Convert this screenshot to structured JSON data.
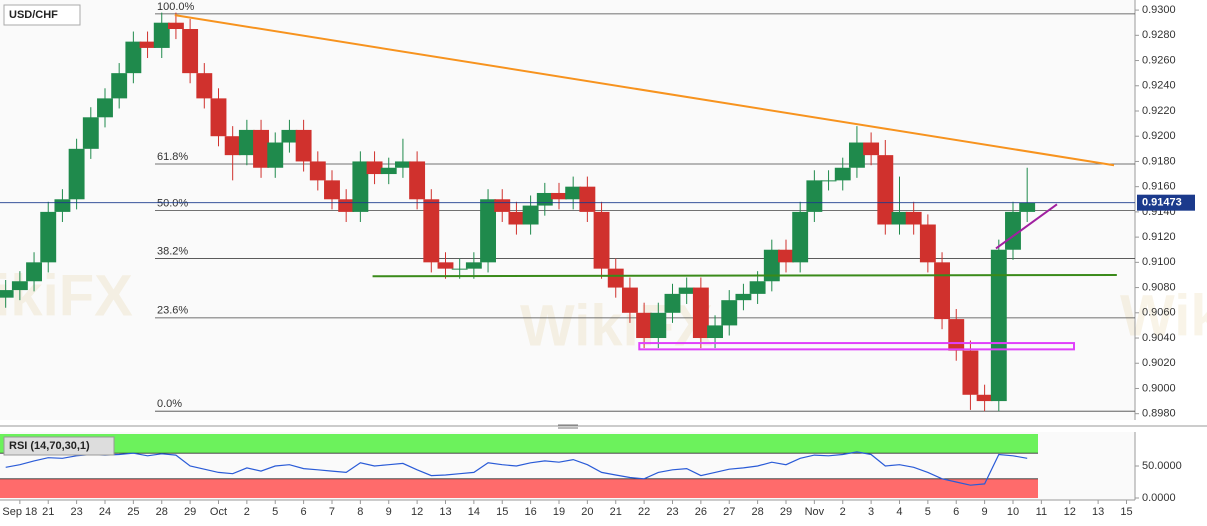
{
  "chart_data": [
    {
      "type": "candlestick",
      "title": "USD/CHF",
      "watermark": "WikiFX",
      "x_labels": [
        "Sep 18",
        "21",
        "23",
        "24",
        "25",
        "28",
        "29",
        "Oct",
        "2",
        "5",
        "6",
        "7",
        "8",
        "9",
        "12",
        "13",
        "14",
        "15",
        "16",
        "19",
        "20",
        "21",
        "22",
        "23",
        "26",
        "27",
        "28",
        "29",
        "Nov",
        "2",
        "3",
        "4",
        "5",
        "6",
        "9",
        "10",
        "11",
        "12",
        "13",
        "15"
      ],
      "xlim": [
        -0.7,
        39.3
      ],
      "ylim": [
        0.8975,
        0.9308
      ],
      "yticks": [
        {
          "value": 0.898,
          "label": "0.8980"
        },
        {
          "value": 0.9,
          "label": "0.9000"
        },
        {
          "value": 0.902,
          "label": "0.9020"
        },
        {
          "value": 0.904,
          "label": "0.9040"
        },
        {
          "value": 0.906,
          "label": "0.9060"
        },
        {
          "value": 0.908,
          "label": "0.9080"
        },
        {
          "value": 0.91,
          "label": "0.9100"
        },
        {
          "value": 0.912,
          "label": "0.9120"
        },
        {
          "value": 0.914,
          "label": "0.9140"
        },
        {
          "value": 0.916,
          "label": "0.9160"
        },
        {
          "value": 0.918,
          "label": "0.9180"
        },
        {
          "value": 0.92,
          "label": "0.9200"
        },
        {
          "value": 0.922,
          "label": "0.9220"
        },
        {
          "value": 0.924,
          "label": "0.9240"
        },
        {
          "value": 0.926,
          "label": "0.9260"
        },
        {
          "value": 0.928,
          "label": "0.9280"
        },
        {
          "value": 0.93,
          "label": "0.9300"
        }
      ],
      "up_color": "#1f8a4c",
      "down_color": "#d0312d",
      "candles": {
        "x": [
          -0.5,
          0,
          0.5,
          1,
          1.5,
          2,
          2.5,
          3,
          3.5,
          4,
          4.5,
          5,
          5.5,
          6,
          6.5,
          7,
          7.5,
          8,
          8.5,
          9,
          9.5,
          10,
          10.5,
          11,
          11.5,
          12,
          12.5,
          13,
          13.5,
          14,
          14.5,
          15,
          15.5,
          16,
          16.5,
          17,
          17.5,
          18,
          18.5,
          19,
          19.5,
          20,
          20.5,
          21,
          21.5,
          22,
          22.5,
          23,
          23.5,
          24,
          24.5,
          25,
          25.5,
          26,
          26.5,
          27,
          27.5,
          28,
          28.5,
          29,
          29.5,
          30,
          30.5,
          31,
          31.5,
          32,
          32.5,
          33,
          33.5,
          34,
          34.5,
          35,
          35.5
        ],
        "open": [
          0.9072,
          0.9078,
          0.9085,
          0.91,
          0.914,
          0.915,
          0.919,
          0.9215,
          0.923,
          0.925,
          0.9275,
          0.927,
          0.929,
          0.9285,
          0.925,
          0.923,
          0.92,
          0.9185,
          0.9205,
          0.9175,
          0.9195,
          0.9205,
          0.918,
          0.9165,
          0.915,
          0.914,
          0.918,
          0.917,
          0.9175,
          0.918,
          0.915,
          0.91,
          0.9095,
          0.9095,
          0.91,
          0.915,
          0.914,
          0.913,
          0.9145,
          0.9155,
          0.915,
          0.916,
          0.914,
          0.9095,
          0.908,
          0.906,
          0.904,
          0.906,
          0.9075,
          0.908,
          0.904,
          0.905,
          0.907,
          0.9075,
          0.9085,
          0.911,
          0.91,
          0.914,
          0.9165,
          0.9165,
          0.9175,
          0.9195,
          0.9185,
          0.913,
          0.914,
          0.913,
          0.91,
          0.9055,
          0.903,
          0.8995,
          0.899,
          0.911,
          0.914
        ],
        "high": [
          0.9086,
          0.9093,
          0.9108,
          0.9148,
          0.9158,
          0.9198,
          0.9223,
          0.9238,
          0.9258,
          0.9283,
          0.9283,
          0.9298,
          0.9298,
          0.9293,
          0.9258,
          0.9238,
          0.9208,
          0.9213,
          0.9213,
          0.9203,
          0.9213,
          0.9213,
          0.9188,
          0.9173,
          0.9158,
          0.9188,
          0.9188,
          0.9183,
          0.9198,
          0.9188,
          0.9158,
          0.9108,
          0.9103,
          0.9108,
          0.9158,
          0.9158,
          0.9148,
          0.9153,
          0.9163,
          0.9163,
          0.9168,
          0.9168,
          0.9148,
          0.9103,
          0.9088,
          0.9068,
          0.9068,
          0.9083,
          0.9088,
          0.9088,
          0.9058,
          0.9078,
          0.9083,
          0.9093,
          0.9118,
          0.9118,
          0.9148,
          0.9173,
          0.9173,
          0.9183,
          0.9208,
          0.9203,
          0.9197,
          0.9168,
          0.9148,
          0.9138,
          0.9108,
          0.9063,
          0.9038,
          0.9003,
          0.9118,
          0.9148,
          0.9175
        ],
        "low": [
          0.9064,
          0.907,
          0.9077,
          0.9092,
          0.9132,
          0.9142,
          0.9182,
          0.9207,
          0.9222,
          0.9242,
          0.9262,
          0.9262,
          0.9277,
          0.9242,
          0.9222,
          0.9192,
          0.9165,
          0.9177,
          0.9167,
          0.9167,
          0.9187,
          0.9172,
          0.9157,
          0.9142,
          0.9132,
          0.9132,
          0.9162,
          0.9162,
          0.9167,
          0.9142,
          0.9092,
          0.9087,
          0.9087,
          0.9087,
          0.9092,
          0.9132,
          0.9122,
          0.9122,
          0.9137,
          0.9142,
          0.9142,
          0.9132,
          0.9087,
          0.9072,
          0.9052,
          0.9032,
          0.9032,
          0.9052,
          0.9067,
          0.9032,
          0.9032,
          0.9042,
          0.9062,
          0.9067,
          0.9077,
          0.9092,
          0.9092,
          0.9132,
          0.9157,
          0.9157,
          0.9167,
          0.9177,
          0.9122,
          0.9122,
          0.9122,
          0.9092,
          0.9047,
          0.9022,
          0.8983,
          0.8982,
          0.8982,
          0.9102,
          0.9132
        ],
        "close": [
          0.9078,
          0.9085,
          0.91,
          0.914,
          0.915,
          0.919,
          0.9215,
          0.923,
          0.925,
          0.9275,
          0.927,
          0.929,
          0.9285,
          0.925,
          0.923,
          0.92,
          0.9185,
          0.9205,
          0.9175,
          0.9195,
          0.9205,
          0.918,
          0.9165,
          0.915,
          0.914,
          0.918,
          0.917,
          0.9175,
          0.918,
          0.915,
          0.91,
          0.9095,
          0.9095,
          0.91,
          0.915,
          0.914,
          0.913,
          0.9145,
          0.9155,
          0.915,
          0.916,
          0.914,
          0.9095,
          0.908,
          0.906,
          0.904,
          0.906,
          0.9075,
          0.908,
          0.904,
          0.905,
          0.907,
          0.9075,
          0.9085,
          0.911,
          0.91,
          0.914,
          0.9165,
          0.9165,
          0.9175,
          0.9195,
          0.9185,
          0.913,
          0.914,
          0.913,
          0.91,
          0.9055,
          0.903,
          0.8995,
          0.899,
          0.911,
          0.914,
          0.91473
        ]
      },
      "last_price": 0.91473,
      "last_price_color": "#1b3a8c",
      "fib_levels": [
        {
          "label": "100.0%",
          "value": 0.9297
        },
        {
          "label": "61.8%",
          "value": 0.9178
        },
        {
          "label": "50.0%",
          "value": 0.9141
        },
        {
          "label": "38.2%",
          "value": 0.9103
        },
        {
          "label": "23.6%",
          "value": 0.9056
        },
        {
          "label": "0.0%",
          "value": 0.8982
        }
      ],
      "trendlines": [
        {
          "color": "#f7931e",
          "x": [
            5.46,
            38.56
          ],
          "y": [
            0.9296,
            0.9177
          ]
        },
        {
          "color": "#3a8a1a",
          "x": [
            12.43,
            38.66
          ],
          "y": [
            0.9089,
            0.909
          ]
        },
        {
          "color": "#a020a0",
          "x": [
            34.4,
            36.55
          ],
          "y": [
            0.9111,
            0.9146
          ]
        }
      ],
      "zones": [
        {
          "color": "#e040fb",
          "x": [
            21.83,
            37.15
          ],
          "y": [
            0.9031,
            0.9036
          ]
        }
      ]
    },
    {
      "type": "line",
      "title": "RSI (14,70,30,1)",
      "color": "#2a5bd7",
      "ylim": [
        0,
        100
      ],
      "yticks": [
        {
          "value": 0,
          "label": "0.0000"
        },
        {
          "value": 50,
          "label": "50.0000"
        }
      ],
      "overbought": 70,
      "oversold": 30,
      "overbought_color": "#6cf25c",
      "oversold_color": "#ff6b6b",
      "x": [
        -0.5,
        0,
        0.5,
        1,
        1.5,
        2,
        2.5,
        3,
        3.5,
        4,
        4.5,
        5,
        5.5,
        6,
        6.5,
        7,
        7.5,
        8,
        8.5,
        9,
        9.5,
        10,
        10.5,
        11,
        11.5,
        12,
        12.5,
        13,
        13.5,
        14,
        14.5,
        15,
        15.5,
        16,
        16.5,
        17,
        17.5,
        18,
        18.5,
        19,
        19.5,
        20,
        20.5,
        21,
        21.5,
        22,
        22.5,
        23,
        23.5,
        24,
        24.5,
        25,
        25.5,
        26,
        26.5,
        27,
        27.5,
        28,
        28.5,
        29,
        29.5,
        30,
        30.5,
        31,
        31.5,
        32,
        32.5,
        33,
        33.5,
        34,
        34.5,
        35,
        35.5
      ],
      "values": [
        48,
        52,
        58,
        63,
        62,
        66,
        68,
        67,
        68,
        70,
        66,
        69,
        67,
        50,
        45,
        40,
        38,
        47,
        42,
        50,
        52,
        46,
        44,
        42,
        40,
        55,
        50,
        52,
        54,
        44,
        35,
        36,
        38,
        40,
        55,
        52,
        50,
        55,
        58,
        56,
        60,
        52,
        40,
        36,
        32,
        30,
        40,
        44,
        46,
        35,
        40,
        45,
        47,
        50,
        56,
        52,
        62,
        67,
        66,
        68,
        72,
        68,
        50,
        52,
        48,
        40,
        30,
        25,
        20,
        22,
        68,
        66,
        62
      ]
    }
  ]
}
